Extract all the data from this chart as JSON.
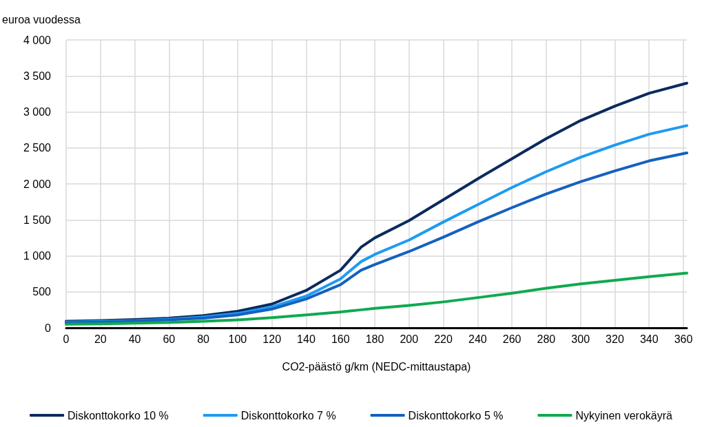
{
  "chart_data": {
    "type": "line",
    "ylabel": "euroa vuodessa",
    "xlabel": "CO2-päästö g/km (NEDC-mittaustapa)",
    "x": [
      0,
      20,
      40,
      60,
      80,
      100,
      120,
      140,
      160,
      172,
      180,
      200,
      220,
      240,
      260,
      280,
      300,
      320,
      340,
      362
    ],
    "series": [
      {
        "name": "Diskonttokorko 10 %",
        "color": "#0b2a5e",
        "values": [
          90,
          100,
          115,
          135,
          170,
          230,
          330,
          520,
          800,
          1120,
          1250,
          1490,
          1780,
          2070,
          2350,
          2630,
          2880,
          3080,
          3260,
          3400
        ]
      },
      {
        "name": "Diskonttokorko 7 %",
        "color": "#1e9bf0",
        "values": [
          80,
          90,
          100,
          120,
          150,
          200,
          290,
          440,
          680,
          920,
          1020,
          1220,
          1470,
          1710,
          1950,
          2170,
          2370,
          2540,
          2690,
          2810
        ]
      },
      {
        "name": "Diskonttokorko 5 %",
        "color": "#1560c0",
        "values": [
          70,
          80,
          95,
          110,
          135,
          180,
          260,
          400,
          600,
          800,
          880,
          1060,
          1260,
          1470,
          1670,
          1860,
          2030,
          2180,
          2320,
          2430
        ]
      },
      {
        "name": "Nykyinen verokäyrä",
        "color": "#10a94f",
        "values": [
          50,
          55,
          65,
          75,
          90,
          110,
          140,
          180,
          220,
          250,
          270,
          310,
          360,
          420,
          480,
          550,
          610,
          660,
          710,
          760
        ]
      }
    ],
    "xlim": [
      0,
      362
    ],
    "xticks": [
      0,
      20,
      40,
      60,
      80,
      100,
      120,
      140,
      160,
      180,
      200,
      220,
      240,
      260,
      280,
      300,
      320,
      340,
      360
    ],
    "ylim": [
      0,
      4000
    ],
    "yticks": [
      0,
      {
        "value": 500,
        "label": "500"
      },
      {
        "value": 1000,
        "label": "1 000"
      },
      {
        "value": 1500,
        "label": "1 500"
      },
      {
        "value": 2000,
        "label": "2 000"
      },
      {
        "value": 2500,
        "label": "2 500"
      },
      {
        "value": 3000,
        "label": "3 000"
      },
      {
        "value": 3500,
        "label": "3 500"
      },
      {
        "value": 4000,
        "label": "4 000"
      }
    ],
    "grid": true,
    "legend": "bottom",
    "marker": "none",
    "line_style": "solid"
  }
}
